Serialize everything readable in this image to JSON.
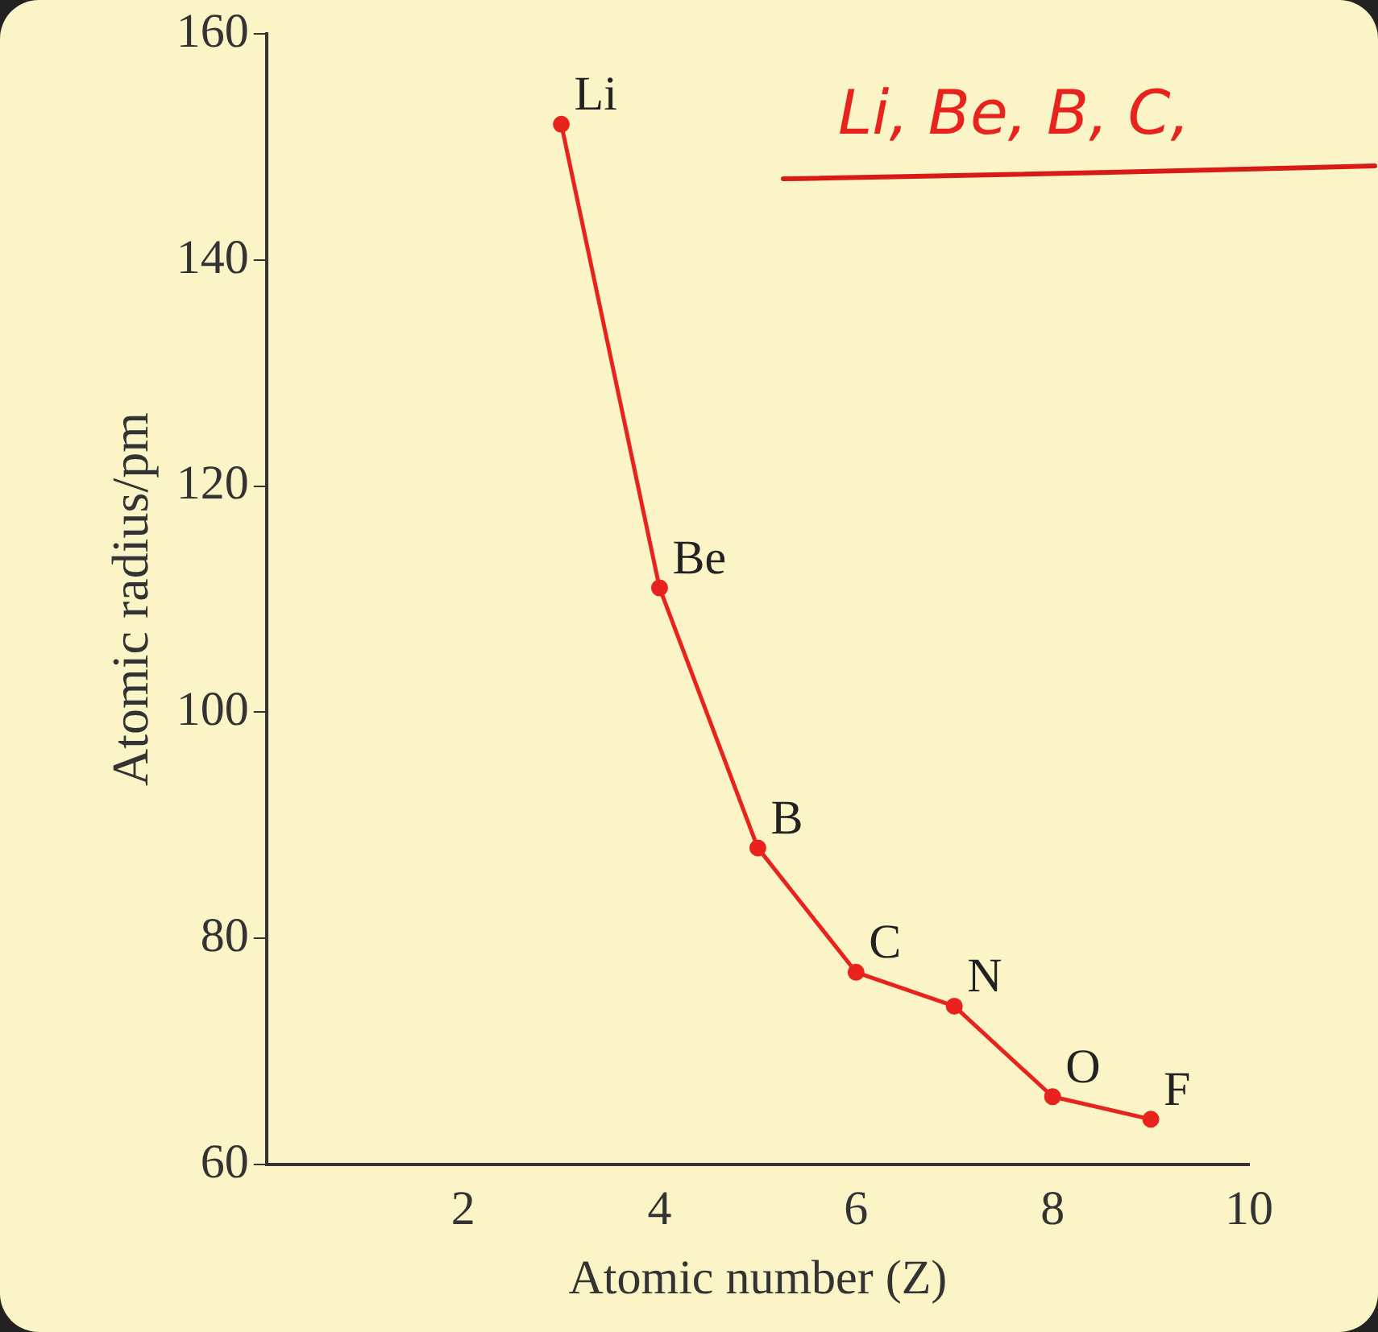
{
  "chart_data": {
    "type": "line",
    "xlabel": "Atomic number (Z)",
    "ylabel": "Atomic radius/pm",
    "x": [
      3,
      4,
      5,
      6,
      7,
      8,
      9
    ],
    "values": [
      152,
      111,
      88,
      77,
      74,
      66,
      64
    ],
    "color": "#e8231e",
    "marker": "circle",
    "line_style": "solid",
    "xlim": [
      0,
      10
    ],
    "xticks": [
      2,
      4,
      6,
      8,
      10
    ],
    "ylim": [
      60,
      160
    ],
    "yticks": [
      60,
      80,
      100,
      120,
      140,
      160
    ],
    "grid": false,
    "legend": false,
    "annotations": [
      {
        "text": "Li",
        "x": 3,
        "y": 152
      },
      {
        "text": "Be",
        "x": 4,
        "y": 111
      },
      {
        "text": "B",
        "x": 5,
        "y": 88
      },
      {
        "text": "C",
        "x": 6,
        "y": 77
      },
      {
        "text": "N",
        "x": 7,
        "y": 74
      },
      {
        "text": "O",
        "x": 8,
        "y": 66
      },
      {
        "text": "F",
        "x": 9,
        "y": 64
      },
      "Li, Be, B, C,"
    ]
  }
}
